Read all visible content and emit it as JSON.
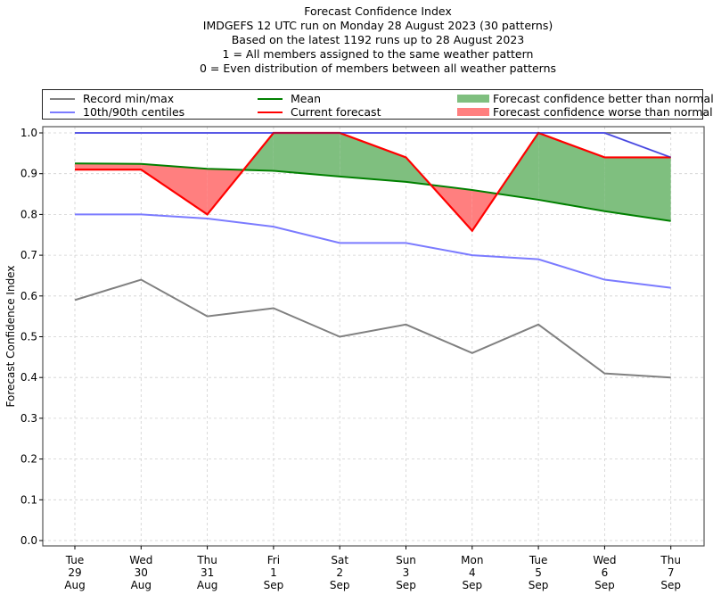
{
  "chart_data": {
    "type": "line",
    "title_lines": [
      "Forecast Confidence Index",
      "IMDGEFS 12 UTC run on Monday 28 August 2023 (30 patterns)",
      "Based on the latest 1192 runs up to 28 August 2023",
      "1 = All members assigned to the same weather pattern",
      "0 = Even distribution of members between all weather patterns"
    ],
    "xlabel": "",
    "ylabel": "Forecast Confidence Index",
    "ylim": [
      0,
      1.0
    ],
    "yticks": [
      "0.0",
      "0.1",
      "0.2",
      "0.3",
      "0.4",
      "0.5",
      "0.6",
      "0.7",
      "0.8",
      "0.9",
      "1.0"
    ],
    "grid": true,
    "legend_position": "top",
    "categories": [
      [
        "Tue",
        "29",
        "Aug"
      ],
      [
        "Wed",
        "30",
        "Aug"
      ],
      [
        "Thu",
        "31",
        "Aug"
      ],
      [
        "Fri",
        "1",
        "Sep"
      ],
      [
        "Sat",
        "2",
        "Sep"
      ],
      [
        "Sun",
        "3",
        "Sep"
      ],
      [
        "Mon",
        "4",
        "Sep"
      ],
      [
        "Tue",
        "5",
        "Sep"
      ],
      [
        "Wed",
        "6",
        "Sep"
      ],
      [
        "Thu",
        "7",
        "Sep"
      ]
    ],
    "series": [
      {
        "name": "Record max",
        "legend": "Record min/max",
        "color": "#808080",
        "values": [
          1.0,
          1.0,
          1.0,
          1.0,
          1.0,
          1.0,
          1.0,
          1.0,
          1.0,
          1.0
        ]
      },
      {
        "name": "Record min",
        "legend": "Record min/max",
        "color": "#808080",
        "values": [
          0.59,
          0.64,
          0.55,
          0.57,
          0.5,
          0.53,
          0.46,
          0.53,
          0.41,
          0.4
        ]
      },
      {
        "name": "90th centile",
        "legend": "10th/90th centiles",
        "color": "#7b7bff",
        "values": [
          1.0,
          1.0,
          1.0,
          1.0,
          1.0,
          1.0,
          1.0,
          1.0,
          1.0,
          0.94
        ]
      },
      {
        "name": "10th centile",
        "legend": "10th/90th centiles",
        "color": "#7b7bff",
        "values": [
          0.8,
          0.8,
          0.79,
          0.77,
          0.73,
          0.73,
          0.7,
          0.69,
          0.64,
          0.62
        ]
      },
      {
        "name": "Mean",
        "legend": "Mean",
        "color": "#008000",
        "values": [
          0.925,
          0.924,
          0.912,
          0.907,
          0.893,
          0.88,
          0.86,
          0.836,
          0.808,
          0.784
        ]
      },
      {
        "name": "Current forecast",
        "legend": "Current forecast",
        "color": "#ff0000",
        "values": [
          0.91,
          0.91,
          0.8,
          1.0,
          1.0,
          0.94,
          0.76,
          1.0,
          0.94,
          0.94
        ]
      }
    ],
    "fills": [
      {
        "name": "Forecast confidence better than normal",
        "color": "#7fbf7f",
        "condition": "current > mean"
      },
      {
        "name": "Forecast confidence worse than normal",
        "color": "#ff7f7f",
        "condition": "current < mean"
      }
    ]
  },
  "legend": {
    "record": "Record min/max",
    "centiles": "10th/90th centiles",
    "mean": "Mean",
    "current": "Current forecast",
    "better": "Forecast confidence better than normal",
    "worse": "Forecast confidence worse than normal"
  },
  "colors": {
    "record": "#808080",
    "centiles": "#7b7bff",
    "mean": "#008000",
    "current": "#ff0000",
    "better": "#7fbf7f",
    "worse": "#ff7f7f"
  }
}
